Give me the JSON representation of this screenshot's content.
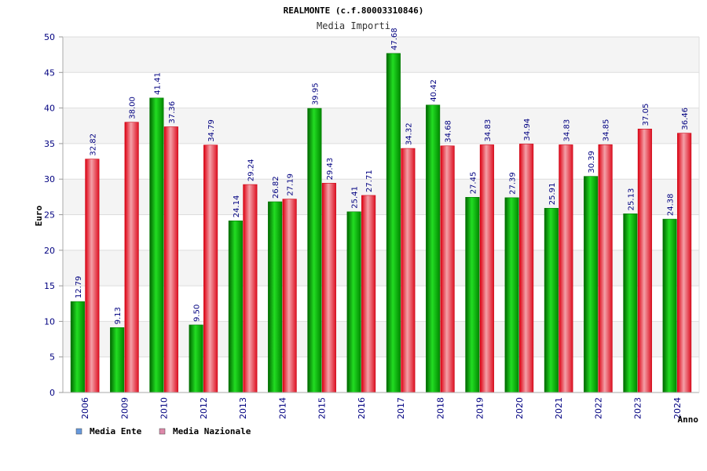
{
  "chart_data": {
    "type": "bar",
    "title": "REALMONTE (c.f.80003310846)",
    "subtitle": "Media Importi",
    "xlabel": "Anno",
    "ylabel": "Euro",
    "ylim": [
      0,
      50
    ],
    "yticks": [
      "0",
      "5",
      "10",
      "15",
      "20",
      "25",
      "30",
      "35",
      "40",
      "45",
      "50"
    ],
    "grid": true,
    "legend_position": "bottom-left",
    "categories": [
      "2006",
      "2009",
      "2010",
      "2012",
      "2013",
      "2014",
      "2015",
      "2016",
      "2017",
      "2018",
      "2019",
      "2020",
      "2021",
      "2022",
      "2023",
      "2024"
    ],
    "series": [
      {
        "name": "Media Ente",
        "color": "#00a800",
        "legend_color": "#6699dd",
        "values": [
          12.79,
          9.13,
          41.41,
          9.5,
          24.14,
          26.82,
          39.95,
          25.41,
          47.68,
          40.42,
          27.45,
          27.39,
          25.91,
          30.39,
          25.13,
          24.38
        ],
        "labels": [
          "12.79",
          "9.13",
          "41.41",
          "9.50",
          "24.14",
          "26.82",
          "39.95",
          "25.41",
          "47.68",
          "40.42",
          "27.45",
          "27.39",
          "25.91",
          "30.39",
          "25.13",
          "24.38"
        ]
      },
      {
        "name": "Media Nazionale",
        "color": "#e0202a",
        "legend_color": "#dd88aa",
        "values": [
          32.82,
          38.0,
          37.36,
          34.79,
          29.24,
          27.19,
          29.43,
          27.71,
          34.32,
          34.68,
          34.83,
          34.94,
          34.83,
          34.85,
          37.05,
          36.46
        ],
        "labels": [
          "32.82",
          "38.00",
          "37.36",
          "34.79",
          "29.24",
          "27.19",
          "29.43",
          "27.71",
          "34.32",
          "34.68",
          "34.83",
          "34.94",
          "34.83",
          "34.85",
          "37.05",
          "36.46"
        ]
      }
    ]
  }
}
